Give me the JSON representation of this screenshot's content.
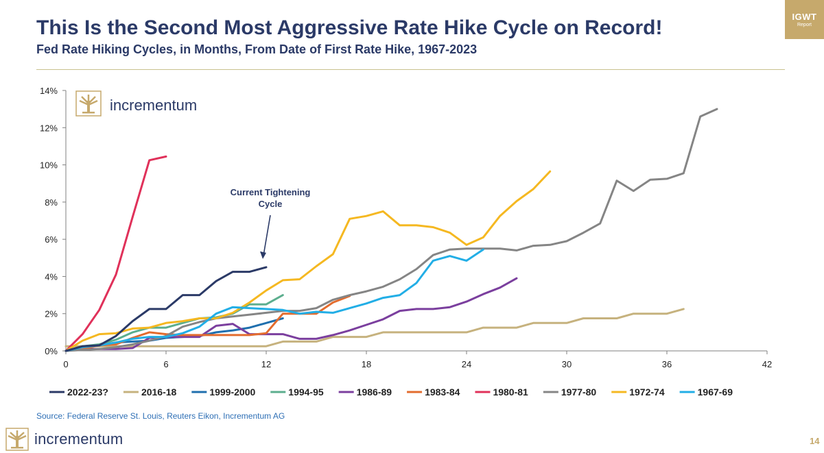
{
  "header": {
    "title": "This Is the Second Most Aggressive Rate Hike Cycle on Record!",
    "subtitle": "Fed Rate Hiking Cycles, in Months, From Date of First Rate Hike, 1967-2023"
  },
  "badge": {
    "main": "IGWT",
    "sub": "Report"
  },
  "brand": {
    "name": "incrementum",
    "gold": "#c6a96c",
    "navy": "#2b3a67"
  },
  "source": "Source: Federal Reserve St. Louis, Reuters Eikon, Incrementum AG",
  "page_number": "14",
  "chart_data": {
    "type": "line",
    "title": "Fed Rate Hiking Cycles, in Months, From Date of First Rate Hike, 1967-2023",
    "xlabel": "",
    "ylabel": "",
    "xlim": [
      0,
      42
    ],
    "ylim": [
      0,
      14
    ],
    "x_ticks": [
      0,
      6,
      12,
      18,
      24,
      30,
      36,
      42
    ],
    "y_ticks": [
      0,
      2,
      4,
      6,
      8,
      10,
      12,
      14
    ],
    "y_tick_labels": [
      "0%",
      "2%",
      "4%",
      "6%",
      "8%",
      "10%",
      "12%",
      "14%"
    ],
    "annotation": {
      "lines": [
        "Current Tightening",
        "Cycle"
      ],
      "points_to": [
        12,
        4.5
      ]
    },
    "series": [
      {
        "name": "2022-23?",
        "color": "#2b3a67",
        "values": [
          0,
          0.25,
          0.3,
          0.8,
          1.6,
          2.25,
          2.25,
          3.0,
          3.0,
          3.75,
          4.25,
          4.25,
          4.5
        ]
      },
      {
        "name": "2016-18",
        "color": "#c6b27e",
        "values": [
          0.25,
          0.25,
          0.25,
          0.25,
          0.25,
          0.25,
          0.25,
          0.25,
          0.25,
          0.25,
          0.25,
          0.25,
          0.25,
          0.5,
          0.5,
          0.5,
          0.75,
          0.75,
          0.75,
          1.0,
          1.0,
          1.0,
          1.0,
          1.0,
          1.0,
          1.25,
          1.25,
          1.25,
          1.5,
          1.5,
          1.5,
          1.75,
          1.75,
          1.75,
          2.0,
          2.0,
          2.0,
          2.25
        ]
      },
      {
        "name": "1999-2000",
        "color": "#1f6fae",
        "values": [
          0,
          0.2,
          0.3,
          0.45,
          0.5,
          0.55,
          0.7,
          0.75,
          0.8,
          1.0,
          1.1,
          1.25,
          1.5,
          1.75
        ]
      },
      {
        "name": "1994-95",
        "color": "#5cae8e",
        "values": [
          0,
          0.25,
          0.35,
          0.6,
          1.0,
          1.25,
          1.25,
          1.5,
          1.75,
          1.8,
          2.0,
          2.5,
          2.5,
          3.0
        ]
      },
      {
        "name": "1986-89",
        "color": "#7b3f9e",
        "values": [
          0,
          0.1,
          0.1,
          0.1,
          0.15,
          0.7,
          0.75,
          0.75,
          0.75,
          1.35,
          1.45,
          0.9,
          0.9,
          0.9,
          0.65,
          0.65,
          0.85,
          1.1,
          1.4,
          1.7,
          2.15,
          2.25,
          2.25,
          2.35,
          2.65,
          3.05,
          3.4,
          3.9
        ]
      },
      {
        "name": "1983-84",
        "color": "#e36c2e",
        "values": [
          0,
          0.1,
          0.3,
          0.35,
          0.7,
          1.0,
          0.9,
          0.85,
          0.85,
          0.85,
          0.85,
          0.85,
          0.95,
          2.0,
          2.0,
          2.0,
          2.6,
          2.95
        ]
      },
      {
        "name": "1980-81",
        "color": "#e0315a",
        "values": [
          0,
          0.9,
          2.2,
          4.1,
          7.2,
          10.25,
          10.45
        ]
      },
      {
        "name": "1977-80",
        "color": "#858585",
        "values": [
          0,
          0.05,
          0.1,
          0.2,
          0.35,
          0.55,
          0.8,
          1.3,
          1.55,
          1.75,
          1.85,
          1.95,
          2.05,
          2.15,
          2.15,
          2.3,
          2.75,
          3.0,
          3.2,
          3.45,
          3.85,
          4.4,
          5.15,
          5.45,
          5.5,
          5.5,
          5.5,
          5.4,
          5.65,
          5.7,
          5.9,
          6.35,
          6.85,
          9.15,
          8.6,
          9.2,
          9.25,
          9.55,
          12.6,
          13.0
        ]
      },
      {
        "name": "1972-74",
        "color": "#f5b821",
        "values": [
          0,
          0.55,
          0.9,
          0.95,
          1.2,
          1.25,
          1.5,
          1.6,
          1.75,
          1.75,
          2.05,
          2.6,
          3.25,
          3.8,
          3.85,
          4.55,
          5.2,
          7.1,
          7.25,
          7.5,
          6.75,
          6.75,
          6.65,
          6.35,
          5.7,
          6.1,
          7.25,
          8.05,
          8.7,
          9.65
        ]
      },
      {
        "name": "1967-69",
        "color": "#22aee6",
        "values": [
          0,
          0.2,
          0.3,
          0.45,
          0.65,
          0.75,
          0.75,
          0.95,
          1.3,
          2.0,
          2.35,
          2.3,
          2.25,
          2.2,
          2.0,
          2.1,
          2.05,
          2.3,
          2.55,
          2.85,
          3.0,
          3.65,
          4.85,
          5.1,
          4.85,
          5.45
        ]
      }
    ]
  }
}
